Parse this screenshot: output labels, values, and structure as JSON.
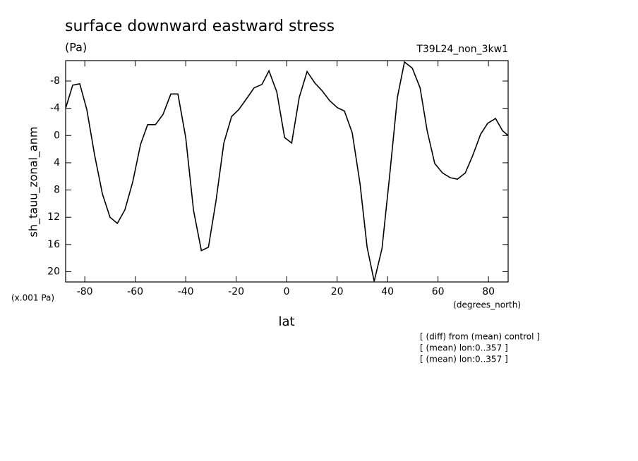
{
  "chart_data": {
    "type": "line",
    "title": "surface downward eastward stress",
    "units": "(Pa)",
    "run_label": "T39L24_non_3kw1",
    "y_label": "sh_tauu_zonal_anm",
    "y_units": "(x.001 Pa)",
    "x_label": "lat",
    "x_units": "(degrees_north)",
    "notes": [
      "[ (diff) from (mean) control ]",
      "[ (mean) lon:0..357 ]",
      "[ (mean) lon:0..357 ]"
    ],
    "x": [
      -87.6,
      -84.8,
      -82.0,
      -79.2,
      -76.1,
      -73.0,
      -70.0,
      -67.1,
      -64.1,
      -61.0,
      -57.9,
      -55.1,
      -52.0,
      -49.0,
      -45.9,
      -43.1,
      -40.0,
      -36.9,
      -33.8,
      -31.0,
      -28.0,
      -24.9,
      -21.8,
      -19.0,
      -15.9,
      -12.9,
      -9.8,
      -7.0,
      -3.9,
      -0.8,
      2.0,
      5.0,
      8.1,
      11.2,
      14.0,
      17.1,
      20.1,
      22.9,
      26.0,
      29.1,
      31.9,
      34.7,
      37.8,
      40.8,
      43.9,
      46.7,
      49.8,
      52.9,
      55.7,
      58.7,
      61.8,
      64.9,
      67.7,
      70.8,
      73.8,
      76.9,
      79.7,
      82.8,
      85.6,
      87.8
    ],
    "series": [
      {
        "name": "sh_tauu_zonal_anm",
        "color": "#000000",
        "values": [
          -4.0,
          -7.4,
          -7.6,
          -3.8,
          2.9,
          8.6,
          12.0,
          12.9,
          10.9,
          6.8,
          1.3,
          -1.6,
          -1.6,
          -3.1,
          -6.1,
          -6.1,
          0.3,
          11.0,
          16.9,
          16.4,
          9.6,
          1.1,
          -2.8,
          -3.8,
          -5.4,
          -7.0,
          -7.5,
          -9.5,
          -6.4,
          0.3,
          1.1,
          -5.6,
          -9.4,
          -7.7,
          -6.6,
          -5.1,
          -4.1,
          -3.6,
          -0.4,
          7.1,
          16.4,
          21.4,
          16.6,
          6.0,
          -5.6,
          -10.8,
          -9.9,
          -7.0,
          -0.7,
          4.1,
          5.5,
          6.2,
          6.4,
          5.5,
          2.9,
          -0.2,
          -1.8,
          -2.5,
          -0.7,
          0
        ]
      }
    ],
    "xlim": [
      -87.6,
      87.8
    ],
    "xticks": [
      -80,
      -60,
      -40,
      -20,
      0,
      20,
      40,
      60,
      80
    ],
    "ylim": [
      -11,
      21.5
    ],
    "y_inverted": true,
    "yticks": [
      -8,
      -4,
      0,
      4,
      8,
      12,
      16,
      20
    ]
  }
}
